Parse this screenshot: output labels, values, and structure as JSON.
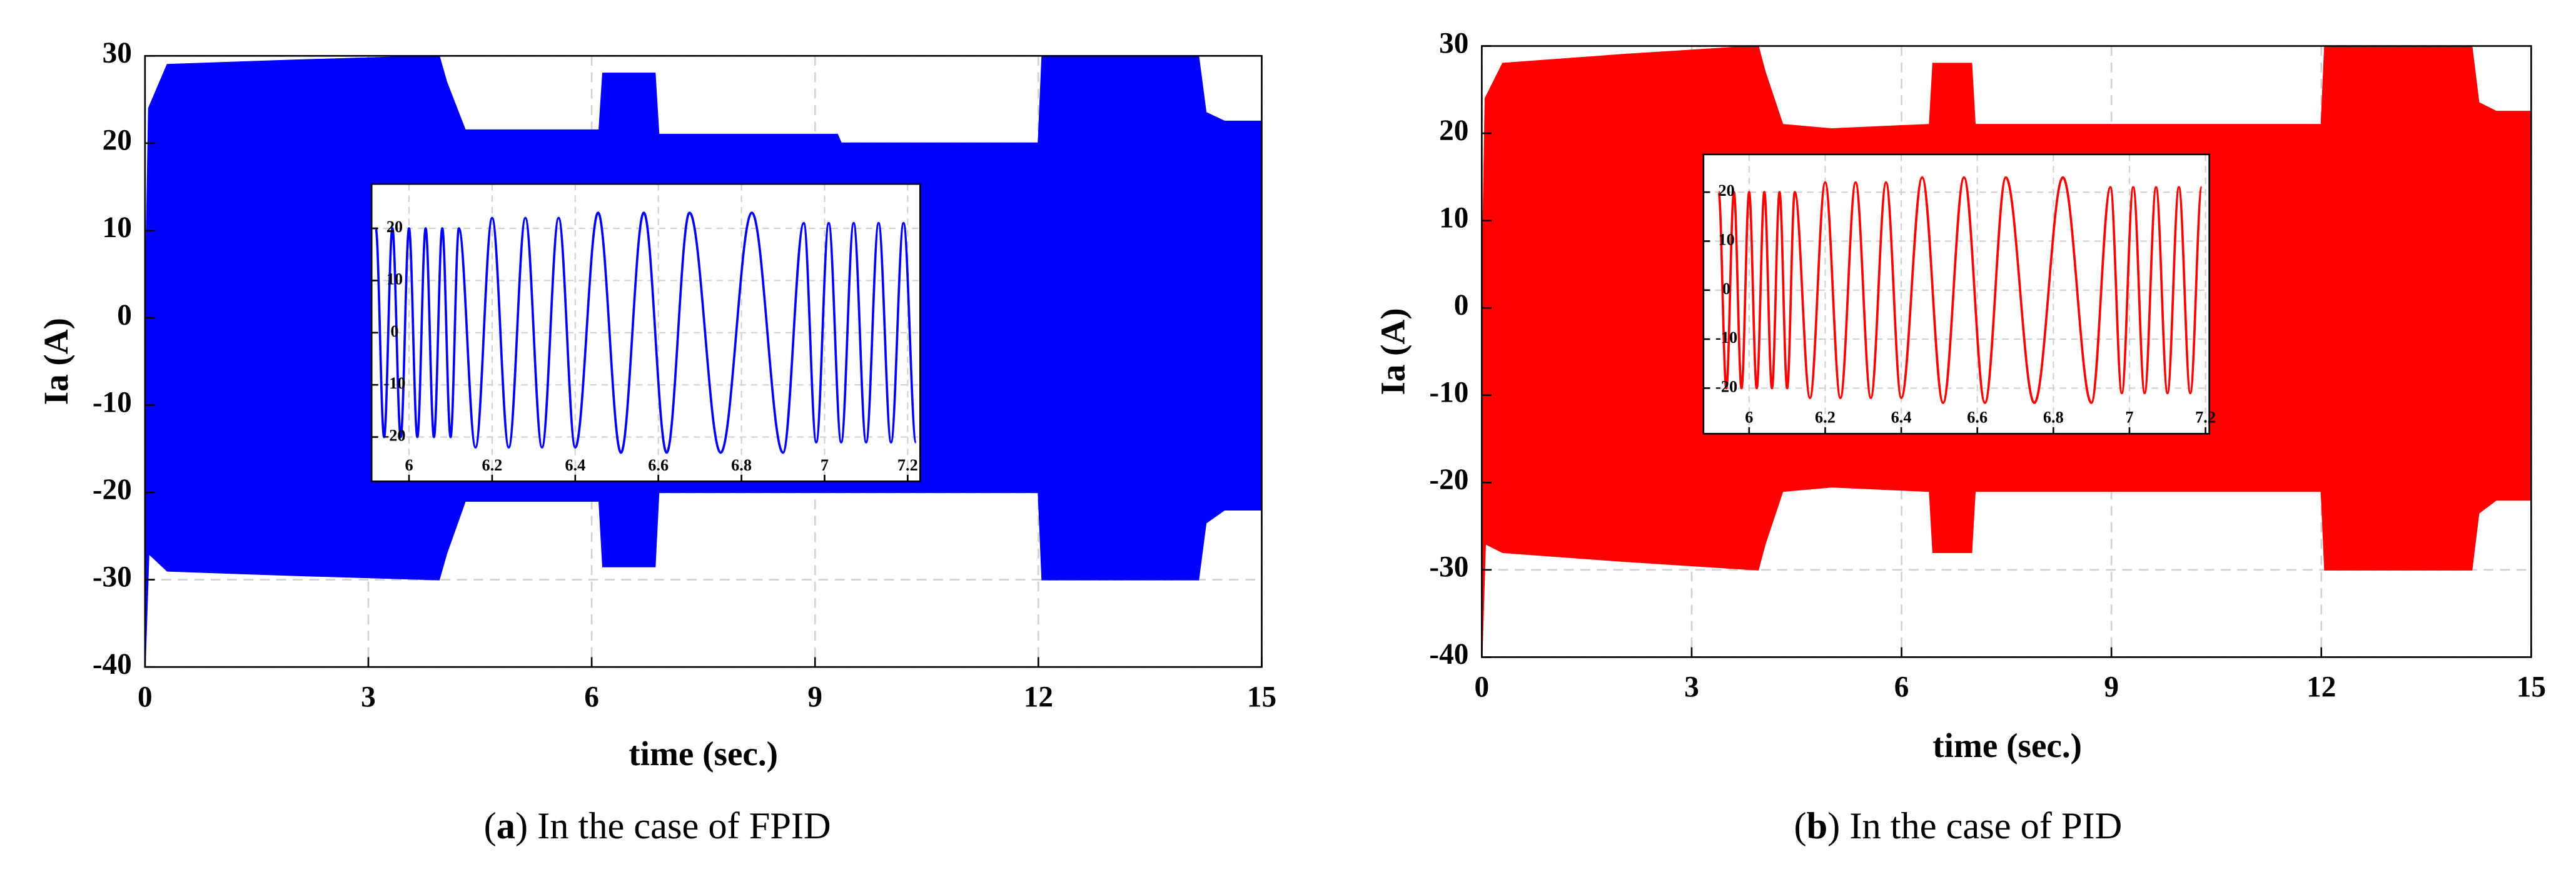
{
  "chart_data": [
    {
      "type": "area",
      "xlabel": "time (sec.)",
      "ylabel": "Ia (A)",
      "caption": [
        "(",
        "a",
        ") In the case of FPID"
      ],
      "x": [
        0,
        0.05,
        0.3,
        2,
        3.95,
        4.05,
        4.3,
        6.1,
        6.15,
        6.85,
        6.9,
        9.3,
        9.35,
        12,
        12.05,
        14.15,
        14.25,
        14.5,
        15
      ],
      "series": [
        {
          "color": "#0000ff",
          "values": [
            0,
            24,
            29,
            29.5,
            30,
            27,
            21.5,
            21.5,
            28,
            28,
            21,
            21,
            20,
            20,
            30,
            30,
            23.5,
            22.5,
            22.5
          ]
        },
        {
          "color": "#0000ff",
          "values": [
            -40,
            -27,
            -29,
            -29.5,
            -30,
            -27,
            -21,
            -21,
            -28.5,
            -28.5,
            -20,
            -20,
            -20,
            -20,
            -30,
            -30,
            -23.5,
            -22,
            -22
          ]
        }
      ],
      "xlim": [
        0,
        15
      ],
      "ylim": [
        -40,
        30
      ],
      "xticks": [
        0,
        3,
        6,
        9,
        12,
        15
      ],
      "yticks": [
        -40,
        -30,
        -20,
        -10,
        0,
        10,
        20,
        30
      ],
      "grid": true,
      "inset": {
        "type": "line",
        "color": "#0000ff",
        "x": [
          5.92,
          5.94,
          5.96,
          5.98,
          6.0,
          6.02,
          6.04,
          6.06,
          6.08,
          6.1,
          6.12,
          6.16,
          6.2,
          6.24,
          6.28,
          6.32,
          6.36,
          6.4,
          6.455,
          6.51,
          6.565,
          6.62,
          6.675,
          6.75,
          6.825,
          6.9,
          6.95,
          6.98,
          7.01,
          7.04,
          7.07,
          7.1,
          7.13,
          7.16,
          7.19,
          7.22
        ],
        "values": [
          20,
          -20,
          20,
          -20,
          20,
          -20,
          20,
          -20,
          20,
          -20,
          20,
          -22,
          22,
          -22,
          22,
          -22,
          22,
          -22,
          23,
          -23,
          23,
          -23,
          23,
          -23,
          23,
          -23,
          21,
          -21,
          21,
          -21,
          21,
          -21,
          21,
          -21,
          21,
          -21
        ],
        "xlim": [
          5.91,
          7.23
        ],
        "ylim": [
          -28.5,
          28.5
        ],
        "xticks": [
          6,
          6.2,
          6.4,
          6.6,
          6.8,
          7,
          7.2
        ],
        "yticks": [
          -20,
          -10,
          0,
          10,
          20
        ],
        "grid": true
      }
    },
    {
      "type": "area",
      "xlabel": "time (sec.)",
      "ylabel": "Ia (A)",
      "caption": [
        "(",
        "b",
        ") In the case of PID"
      ],
      "x": [
        0,
        0.05,
        0.3,
        2,
        3.95,
        4.05,
        4.3,
        5.0,
        6.4,
        6.45,
        7.0,
        7.05,
        9.3,
        12,
        12.05,
        14.15,
        14.25,
        14.5,
        15
      ],
      "series": [
        {
          "color": "#ff0000",
          "values": [
            0,
            24,
            28,
            29,
            30,
            27,
            21,
            20.5,
            21,
            28,
            28,
            21,
            21,
            21,
            30,
            30,
            23.5,
            22.5,
            22.5
          ]
        },
        {
          "color": "#ff0000",
          "values": [
            -40,
            -27,
            -28,
            -29,
            -30,
            -27,
            -21,
            -20.5,
            -21,
            -28,
            -28,
            -21,
            -21,
            -21,
            -30,
            -30,
            -23.5,
            -22,
            -22
          ]
        }
      ],
      "xlim": [
        0,
        15
      ],
      "ylim": [
        -40,
        30
      ],
      "xticks": [
        0,
        3,
        6,
        9,
        12,
        15
      ],
      "yticks": [
        -40,
        -30,
        -20,
        -10,
        0,
        10,
        20,
        30
      ],
      "grid": true,
      "inset": {
        "type": "line",
        "color": "#ff0000",
        "x": [
          5.92,
          5.94,
          5.96,
          5.98,
          6.0,
          6.02,
          6.04,
          6.06,
          6.08,
          6.1,
          6.12,
          6.16,
          6.2,
          6.24,
          6.28,
          6.32,
          6.36,
          6.4,
          6.455,
          6.51,
          6.565,
          6.62,
          6.675,
          6.75,
          6.825,
          6.9,
          6.95,
          6.98,
          7.01,
          7.04,
          7.07,
          7.1,
          7.13,
          7.16,
          7.19
        ],
        "values": [
          20,
          -20,
          20,
          -20,
          20,
          -20,
          20,
          -20,
          20,
          -20,
          20,
          -22,
          22,
          -22,
          22,
          -22,
          22,
          -22,
          23,
          -23,
          23,
          -23,
          23,
          -23,
          23,
          -23,
          21,
          -21,
          21,
          -21,
          21,
          -21,
          21,
          -21,
          21
        ],
        "xlim": [
          5.88,
          7.21
        ],
        "ylim": [
          -29.3,
          27.7
        ],
        "xticks": [
          6,
          6.2,
          6.4,
          6.6,
          6.8,
          7,
          7.2
        ],
        "yticks": [
          -20,
          -10,
          0,
          10,
          20
        ],
        "grid": true
      }
    }
  ]
}
